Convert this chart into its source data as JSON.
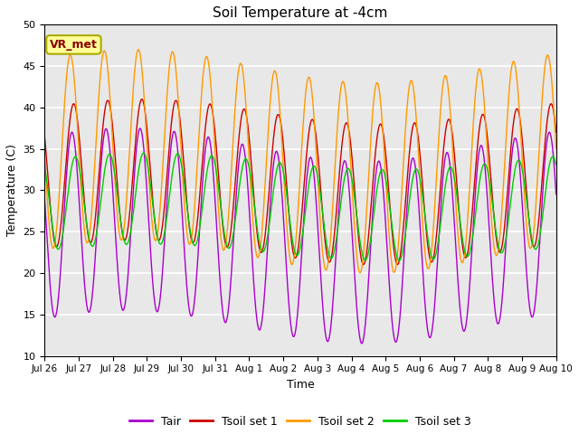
{
  "title": "Soil Temperature at -4cm",
  "xlabel": "Time",
  "ylabel": "Temperature (C)",
  "ylim": [
    10,
    50
  ],
  "background_color": "#e8e8e8",
  "fig_background": "#ffffff",
  "annotation_text": "VR_met",
  "annotation_color": "#8B0000",
  "annotation_bg": "#ffff99",
  "annotation_border": "#aaaa00",
  "grid_color": "white",
  "tick_labels": [
    "Jul 26",
    "Jul 27",
    "Jul 28",
    "Jul 29",
    "Jul 30",
    "Jul 31",
    "Aug 1",
    "Aug 2",
    "Aug 3",
    "Aug 4",
    "Aug 5",
    "Aug 6",
    "Aug 7",
    "Aug 8",
    "Aug 9",
    "Aug 10"
  ],
  "legend_labels": [
    "Tair",
    "Tsoil set 1",
    "Tsoil set 2",
    "Tsoil set 3"
  ],
  "colors": {
    "Tair": "#aa00cc",
    "Tsoil1": "#cc0000",
    "Tsoil2": "#ff9900",
    "Tsoil3": "#00cc00"
  }
}
